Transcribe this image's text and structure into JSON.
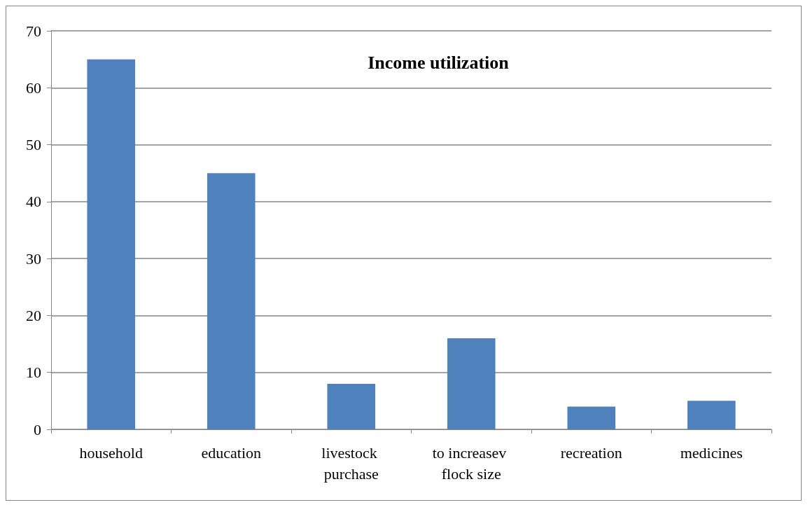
{
  "chart_data": {
    "type": "bar",
    "title": "Income utilization",
    "categories": [
      "household",
      "education",
      "livestock purchase",
      "to increasev flock size",
      "recreation",
      "medicines"
    ],
    "values": [
      65,
      45,
      8,
      16,
      4,
      5
    ],
    "color": "#4f81bd",
    "ylim": [
      0,
      70
    ],
    "yticks": [
      0,
      10,
      20,
      30,
      40,
      50,
      60,
      70
    ],
    "grid": "y"
  }
}
